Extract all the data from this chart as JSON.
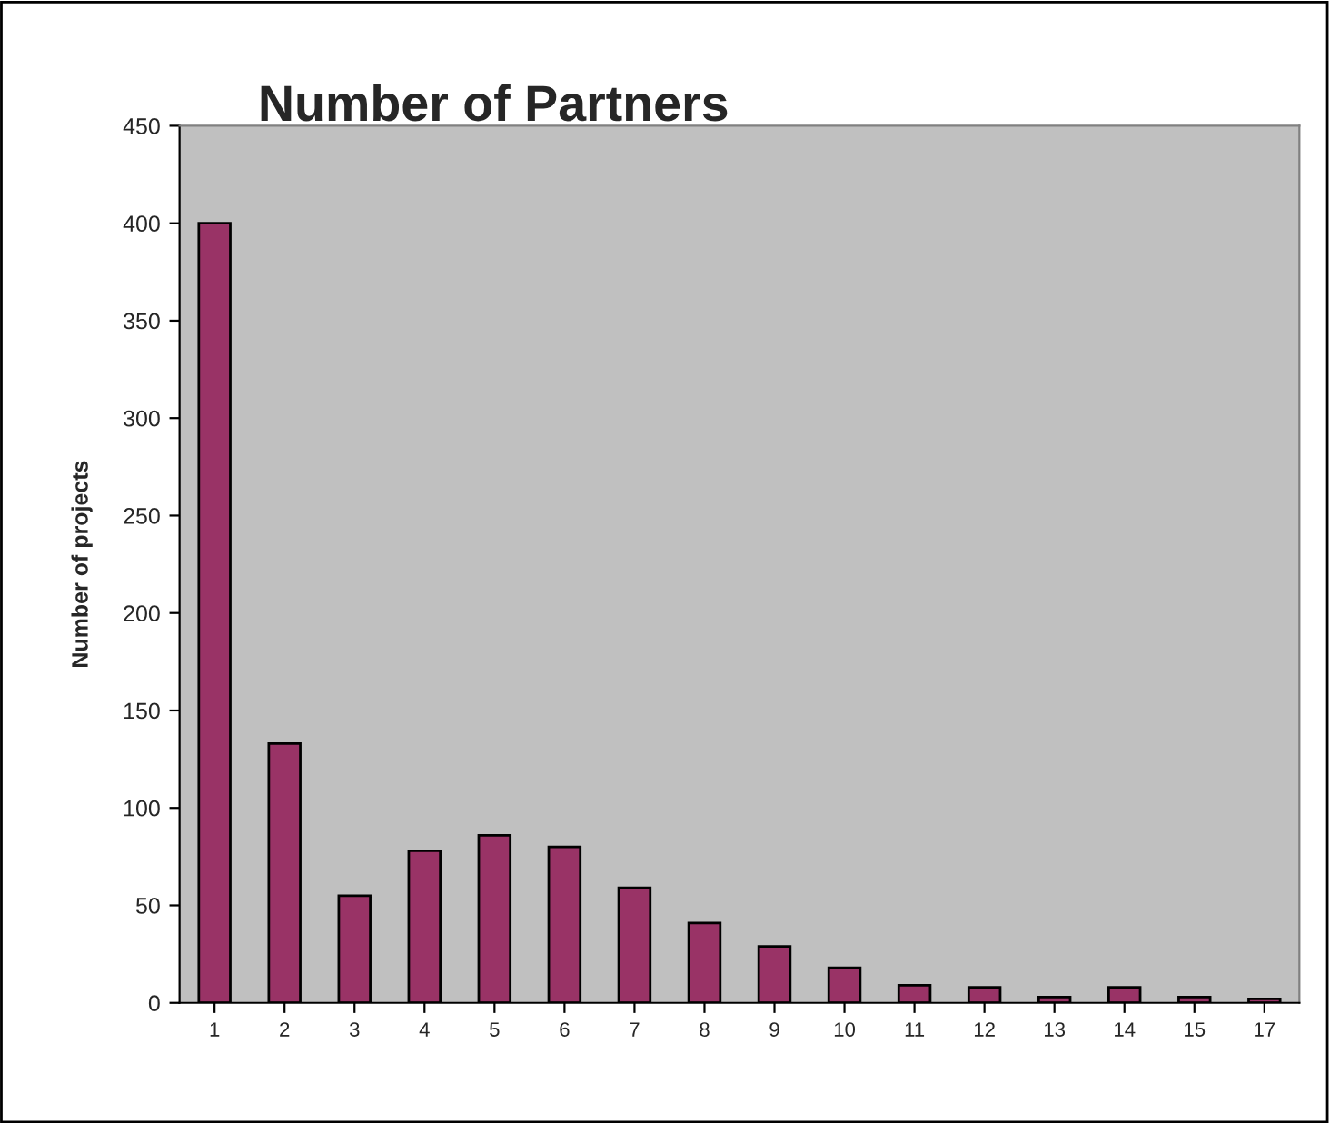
{
  "chart_data": {
    "type": "bar",
    "title": "Number of Partners",
    "ylabel": "Number of projects",
    "categories": [
      "1",
      "2",
      "3",
      "4",
      "5",
      "6",
      "7",
      "8",
      "9",
      "10",
      "11",
      "12",
      "13",
      "14",
      "15",
      "17"
    ],
    "values": [
      400,
      133,
      55,
      78,
      86,
      80,
      59,
      41,
      29,
      18,
      9,
      8,
      3,
      8,
      3,
      2
    ],
    "color": "#993366",
    "ylim": [
      0,
      450
    ],
    "yticks": [
      0,
      50,
      100,
      150,
      200,
      250,
      300,
      350,
      400,
      450
    ],
    "grid": false,
    "legend": false
  }
}
